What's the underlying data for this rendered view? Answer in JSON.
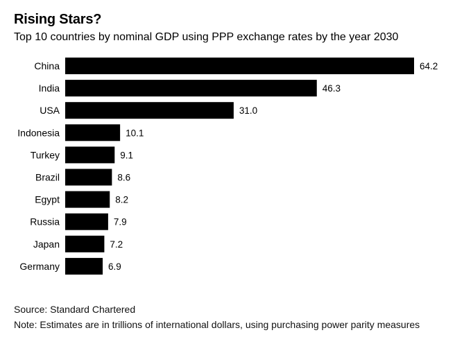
{
  "chart_data": {
    "type": "bar",
    "orientation": "horizontal",
    "title": "Rising Stars?",
    "subtitle": "Top 10 countries by nominal GDP using PPP exchange rates by the year 2030",
    "categories": [
      "China",
      "India",
      "USA",
      "Indonesia",
      "Turkey",
      "Brazil",
      "Egypt",
      "Russia",
      "Japan",
      "Germany"
    ],
    "values": [
      64.2,
      46.3,
      31.0,
      10.1,
      9.1,
      8.6,
      8.2,
      7.9,
      7.2,
      6.9
    ],
    "value_labels": [
      "64.2",
      "46.3",
      "31.0",
      "10.1",
      "9.1",
      "8.6",
      "8.2",
      "7.9",
      "7.2",
      "6.9"
    ],
    "xlim": [
      0,
      64.2
    ],
    "xlabel": "",
    "ylabel": "",
    "grid": false,
    "bar_color": "#000000",
    "source": "Source: Standard Chartered",
    "note": "Note: Estimates are in trillions of international dollars, using purchasing power parity measures"
  }
}
